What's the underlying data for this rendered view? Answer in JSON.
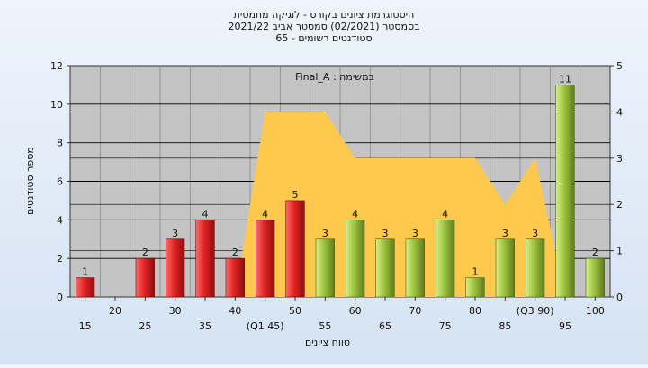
{
  "chart_data": {
    "type": "bar",
    "title_lines": [
      "היסטוגרמת ציונים בקורס - לוגיקה מתמטית",
      "בסמסטר  (02/2021)  סמסטר אביב 2021/22",
      "סטודנטים רשומים - 65"
    ],
    "xlabel": "טווח ציונים",
    "ylabel": "מספר סטודנטים",
    "annotation": "Final_A : במשימה",
    "ylim": [
      0,
      12
    ],
    "y_ticks": [
      "0",
      "2",
      "4",
      "6",
      "8",
      "10",
      "12"
    ],
    "y2lim": [
      0,
      5
    ],
    "y2_ticks": [
      "0",
      "1",
      "2",
      "3",
      "4",
      "5"
    ],
    "categories": [
      "15",
      "20",
      "25",
      "30",
      "35",
      "40",
      "(Q1 45)",
      "50",
      "55",
      "60",
      "65",
      "70",
      "75",
      "80",
      "85",
      "(Q3 90)",
      "95",
      "100"
    ],
    "values": [
      1,
      0,
      2,
      3,
      4,
      2,
      4,
      5,
      3,
      4,
      3,
      3,
      4,
      1,
      3,
      3,
      11,
      2
    ],
    "value_labels": [
      "1",
      "",
      "2",
      "3",
      "4",
      "2",
      "4",
      "5",
      "3",
      "4",
      "3",
      "3",
      "4",
      "1",
      "3",
      "3",
      "11",
      "2"
    ],
    "bar_colors": [
      "red",
      "red",
      "red",
      "red",
      "red",
      "red",
      "red",
      "red",
      "green",
      "green",
      "green",
      "green",
      "green",
      "green",
      "green",
      "green",
      "green",
      "green"
    ],
    "area_secondary": {
      "description_axis": "right",
      "points": [
        {
          "x": "40",
          "y": 0
        },
        {
          "x": "(Q1 45)",
          "y": 4
        },
        {
          "x": "50",
          "y": 4
        },
        {
          "x": "55",
          "y": 4
        },
        {
          "x": "60",
          "y": 3
        },
        {
          "x": "65",
          "y": 3
        },
        {
          "x": "70",
          "y": 3
        },
        {
          "x": "75",
          "y": 3
        },
        {
          "x": "80",
          "y": 3
        },
        {
          "x": "85",
          "y": 2
        },
        {
          "x": "(Q3 90)",
          "y": 3
        },
        {
          "x": "95",
          "y": 0
        }
      ]
    },
    "colors": {
      "red": "#e02424",
      "green": "#9cc23e",
      "area": "#ffc94d",
      "plot_bg": "#c4c4c4",
      "grid": "#000000"
    },
    "grid": true
  }
}
